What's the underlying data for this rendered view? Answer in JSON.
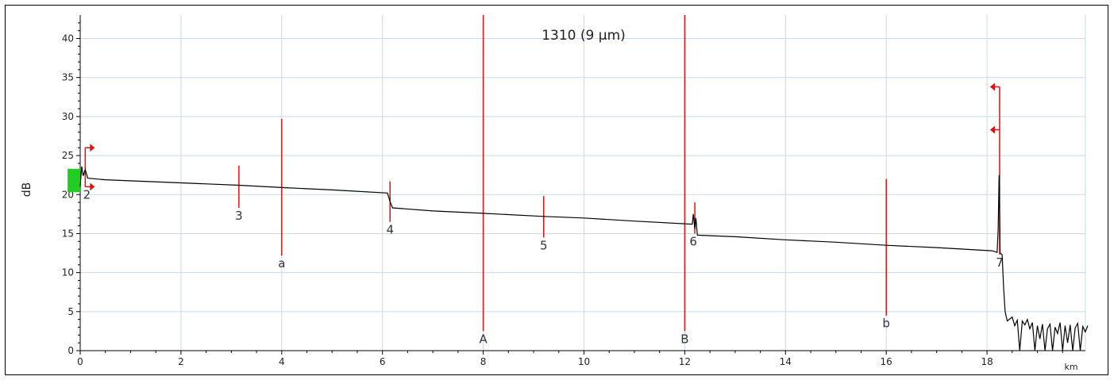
{
  "chart_data": {
    "type": "line",
    "title": "1310 (9 µm)",
    "xlabel": "",
    "ylabel": "dB",
    "x_unit": "km",
    "xlim": [
      0,
      20
    ],
    "ylim": [
      0,
      43
    ],
    "xticks": [
      0,
      2,
      4,
      6,
      8,
      10,
      12,
      14,
      16,
      18
    ],
    "yticks": [
      0,
      5,
      10,
      15,
      20,
      25,
      30,
      35,
      40
    ],
    "grid": true,
    "colors": {
      "trace": "#000000",
      "markers": "#e01010",
      "grid": "#c7d9ea",
      "launch": "#22cc22"
    },
    "trace": [
      [
        0.0,
        21.0
      ],
      [
        0.03,
        23.6
      ],
      [
        0.06,
        22.4
      ],
      [
        0.1,
        23.2
      ],
      [
        0.15,
        22.1
      ],
      [
        0.5,
        21.9
      ],
      [
        2.0,
        21.5
      ],
      [
        3.15,
        21.2
      ],
      [
        4.0,
        20.9
      ],
      [
        5.0,
        20.6
      ],
      [
        6.1,
        20.2
      ],
      [
        6.15,
        19.1
      ],
      [
        6.2,
        18.3
      ],
      [
        7.0,
        17.9
      ],
      [
        8.0,
        17.6
      ],
      [
        9.2,
        17.2
      ],
      [
        10.0,
        17.0
      ],
      [
        11.0,
        16.6
      ],
      [
        12.15,
        16.2
      ],
      [
        12.17,
        17.5
      ],
      [
        12.2,
        15.6
      ],
      [
        12.22,
        17.0
      ],
      [
        12.25,
        14.8
      ],
      [
        13.0,
        14.6
      ],
      [
        14.0,
        14.2
      ],
      [
        15.0,
        13.9
      ],
      [
        16.0,
        13.5
      ],
      [
        17.0,
        13.2
      ],
      [
        18.1,
        12.8
      ],
      [
        18.2,
        12.6
      ],
      [
        18.22,
        15.5
      ],
      [
        18.24,
        22.5
      ],
      [
        18.26,
        12.5
      ],
      [
        18.3,
        12.3
      ],
      [
        18.33,
        8.0
      ],
      [
        18.36,
        5.0
      ],
      [
        18.4,
        3.8
      ],
      [
        18.5,
        4.3
      ],
      [
        18.55,
        3.2
      ],
      [
        18.6,
        3.9
      ],
      [
        18.65,
        0.0
      ],
      [
        18.7,
        3.8
      ],
      [
        18.75,
        3.3
      ],
      [
        18.8,
        4.0
      ],
      [
        18.85,
        2.8
      ],
      [
        18.9,
        3.6
      ],
      [
        18.95,
        0.0
      ],
      [
        19.0,
        3.2
      ],
      [
        19.05,
        1.5
      ],
      [
        19.1,
        3.4
      ],
      [
        19.15,
        0.0
      ],
      [
        19.2,
        2.8
      ],
      [
        19.25,
        3.4
      ],
      [
        19.3,
        0.0
      ],
      [
        19.35,
        3.0
      ],
      [
        19.4,
        2.2
      ],
      [
        19.45,
        3.6
      ],
      [
        19.5,
        0.0
      ],
      [
        19.55,
        3.2
      ],
      [
        19.6,
        1.0
      ],
      [
        19.65,
        3.3
      ],
      [
        19.7,
        0.0
      ],
      [
        19.75,
        2.9
      ],
      [
        19.8,
        3.5
      ],
      [
        19.85,
        0.0
      ],
      [
        19.9,
        3.1
      ],
      [
        19.95,
        2.4
      ],
      [
        20.0,
        3.2
      ]
    ],
    "event_markers": [
      {
        "label": "2",
        "x": 0.1,
        "y_low": 21.0,
        "y_high": 26.0
      },
      {
        "label": "3",
        "x": 3.15,
        "y_low": 18.3,
        "y_high": 23.7
      },
      {
        "label": "a",
        "x": 4.0,
        "y_low": 12.2,
        "y_high": 29.7
      },
      {
        "label": "4",
        "x": 6.15,
        "y_low": 16.5,
        "y_high": 21.7
      },
      {
        "label": "A",
        "x": 8.0,
        "y_low": 2.5,
        "y_high": 43
      },
      {
        "label": "5",
        "x": 9.2,
        "y_low": 14.5,
        "y_high": 19.8
      },
      {
        "label": "B",
        "x": 12.0,
        "y_low": 2.5,
        "y_high": 43
      },
      {
        "label": "6",
        "x": 12.2,
        "y_low": 15.0,
        "y_high": 19.0
      },
      {
        "label": "b",
        "x": 16.0,
        "y_low": 4.5,
        "y_high": 22.0
      },
      {
        "label": "7",
        "x": 18.25,
        "y_low": 12.3,
        "y_high": 33.8
      }
    ],
    "launch_box": {
      "x_from": -0.25,
      "x_to": 0.0,
      "y_from": 20.3,
      "y_to": 23.3
    }
  }
}
